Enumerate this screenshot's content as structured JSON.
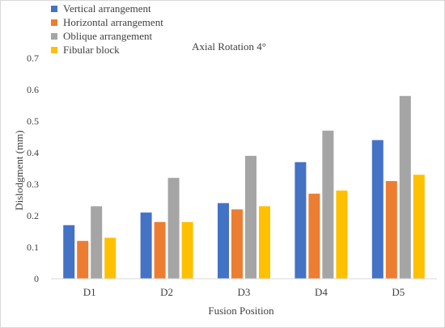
{
  "chart_data": {
    "type": "bar",
    "title": "Axial Rotation 4°",
    "xlabel": "Fusion Position",
    "ylabel": "Dislodgment (mm)",
    "categories": [
      "D1",
      "D2",
      "D3",
      "D4",
      "D5"
    ],
    "ylim": [
      0,
      0.7
    ],
    "yticks": [
      0,
      0.1,
      0.2,
      0.3,
      0.4,
      0.5,
      0.6,
      0.7
    ],
    "ytick_labels": [
      "0",
      "0.1",
      "0.2",
      "0.3",
      "0.4",
      "0.5",
      "0.6",
      "0.7"
    ],
    "grid": false,
    "legend_position": "top-left",
    "series": [
      {
        "name": "Vertical arrangement",
        "color": "#4472c4",
        "values": [
          0.17,
          0.21,
          0.24,
          0.37,
          0.44
        ]
      },
      {
        "name": "Horizontal arrangement",
        "color": "#ed7d31",
        "values": [
          0.12,
          0.18,
          0.22,
          0.27,
          0.31
        ]
      },
      {
        "name": "Oblique arrangement",
        "color": "#a5a5a5",
        "values": [
          0.23,
          0.32,
          0.39,
          0.47,
          0.58
        ]
      },
      {
        "name": "Fibular block",
        "color": "#ffc000",
        "values": [
          0.13,
          0.18,
          0.23,
          0.28,
          0.33
        ]
      }
    ]
  }
}
